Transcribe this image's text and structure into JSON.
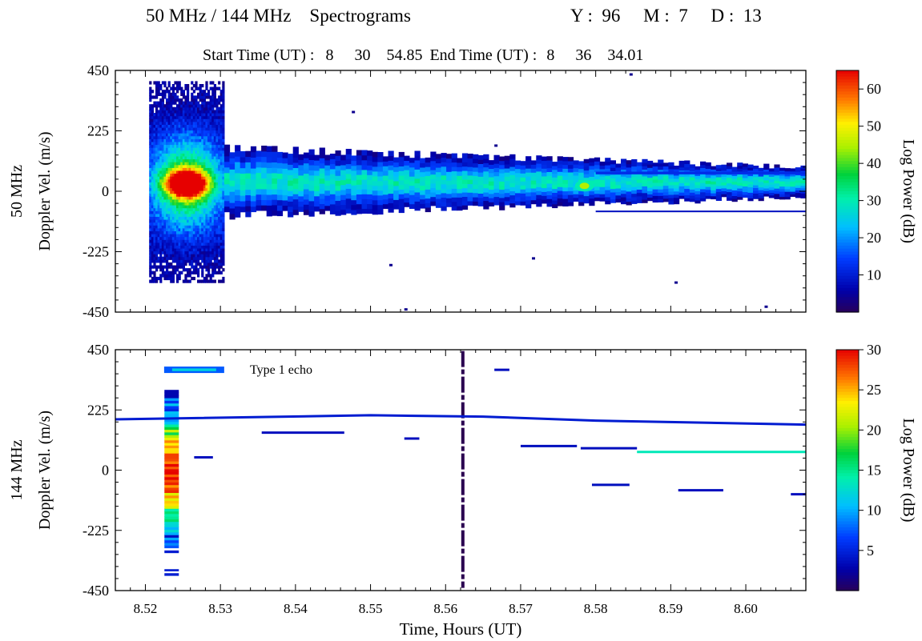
{
  "header": {
    "title": "50 MHz / 144 MHz    Spectrograms",
    "date": "Y :  96     M :  7     D :  13",
    "start_label": "Start Time (UT) :",
    "start_values": [
      "8",
      "30",
      "54.85"
    ],
    "end_label": "End Time (UT) :",
    "end_values": [
      "8",
      "36",
      "34.01"
    ]
  },
  "chart_data": [
    {
      "type": "heatmap",
      "panel_label": "50 MHz",
      "ylabel": "Doppler Vel. (m/s)",
      "xlim": [
        8.516,
        8.608
      ],
      "ylim": [
        -450,
        450
      ],
      "yticks": [
        450,
        225,
        0,
        -225,
        -450
      ],
      "ytick_labels": [
        "450",
        "225",
        "0",
        "-225",
        "-450"
      ],
      "colorbar": {
        "label": "Log Power (dB)",
        "range": [
          0,
          65
        ],
        "ticks": [
          10,
          20,
          30,
          40,
          50,
          60
        ],
        "tick_labels": [
          "10",
          "20",
          "30",
          "40",
          "50",
          "60"
        ]
      },
      "features": [
        {
          "desc": "broad burst",
          "x_range": [
            8.5205,
            8.5305
          ],
          "velocity_range": [
            -340,
            410
          ],
          "peak_db": 63,
          "peak_velocity": 30,
          "peak_time": 8.5255
        },
        {
          "desc": "main echo band",
          "x_range": [
            8.5305,
            8.608
          ],
          "center_velocity": 35,
          "peak_db": 25
        },
        {
          "desc": "bright spot",
          "time": 8.5785,
          "velocity": 20,
          "db": 45
        },
        {
          "desc": "upper streak",
          "x_range": [
            8.58,
            8.608
          ],
          "velocity": 68,
          "db": 12
        },
        {
          "desc": "lower streak",
          "x_range": [
            8.58,
            8.608
          ],
          "velocity": -75,
          "db": 8
        }
      ]
    },
    {
      "type": "heatmap",
      "panel_label": "144 MHz",
      "ylabel": "Doppler Vel. (m/s)",
      "xlabel": "Time, Hours (UT)",
      "xlim": [
        8.516,
        8.608
      ],
      "xticks": [
        8.52,
        8.53,
        8.54,
        8.55,
        8.56,
        8.57,
        8.58,
        8.59,
        8.6
      ],
      "xtick_labels": [
        "8.52",
        "8.53",
        "8.54",
        "8.55",
        "8.56",
        "8.57",
        "8.58",
        "8.59",
        "8.60"
      ],
      "ylim": [
        -450,
        450
      ],
      "yticks": [
        450,
        225,
        0,
        -225,
        -450
      ],
      "ytick_labels": [
        "450",
        "225",
        "0",
        "-225",
        "-450"
      ],
      "annotation": "Type 1 echo",
      "colorbar": {
        "label": "Log Power (dB)",
        "range": [
          0,
          30
        ],
        "ticks": [
          5,
          10,
          15,
          20,
          25,
          30
        ],
        "tick_labels": [
          "5",
          "10",
          "15",
          "20",
          "25",
          "30"
        ]
      },
      "features": [
        {
          "desc": "vertical column",
          "time": 8.5235,
          "velocity_range": [
            -290,
            300
          ],
          "peak_db": 29
        },
        {
          "desc": "upper echo",
          "x_range": [
            8.5225,
            8.5305
          ],
          "velocity": 375,
          "db": 12
        },
        {
          "desc": "vertical dashed line",
          "time": 8.5623,
          "velocity_range": [
            -440,
            445
          ],
          "db": 1
        },
        {
          "desc": "long thin band",
          "x_range": [
            8.516,
            8.608
          ],
          "velocity_profile": [
            [
              8.516,
              190
            ],
            [
              8.55,
              205
            ],
            [
              8.565,
              200
            ],
            [
              8.58,
              185
            ],
            [
              8.608,
              170
            ]
          ],
          "db": 5
        },
        {
          "desc": "short streaks",
          "segments": [
            [
              8.5355,
              8.5465,
              140
            ],
            [
              8.5545,
              8.5565,
              118
            ],
            [
              8.57,
              8.5775,
              90
            ],
            [
              8.578,
              8.5855,
              82
            ],
            [
              8.5855,
              8.608,
              68
            ],
            [
              8.5795,
              8.5845,
              -55
            ],
            [
              8.591,
              8.597,
              -75
            ],
            [
              8.606,
              8.608,
              -90
            ],
            [
              8.5265,
              8.529,
              48
            ],
            [
              8.5665,
              8.5685,
              375
            ]
          ],
          "db": 6
        }
      ]
    }
  ]
}
